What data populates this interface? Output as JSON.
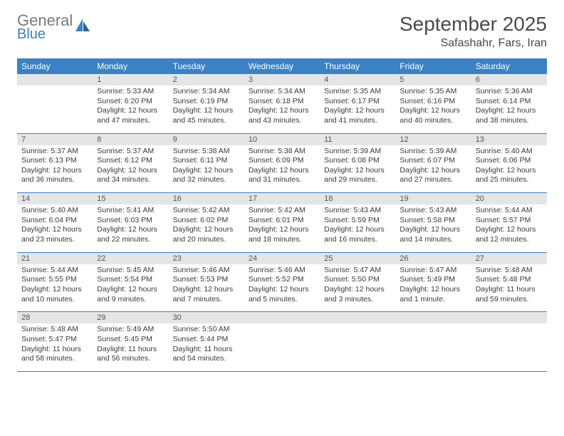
{
  "logo": {
    "line1": "General",
    "line2": "Blue"
  },
  "title": "September 2025",
  "location": "Safashahr, Fars, Iran",
  "colors": {
    "header_bg": "#3a82c4",
    "header_text": "#ffffff",
    "daynum_bg": "#e5e5e5",
    "border": "#3a82c4",
    "text": "#3a3a3a",
    "logo_gray": "#7a7a7a",
    "logo_blue": "#3a82c4"
  },
  "weekdays": [
    "Sunday",
    "Monday",
    "Tuesday",
    "Wednesday",
    "Thursday",
    "Friday",
    "Saturday"
  ],
  "weeks": [
    [
      {
        "day": "",
        "lines": []
      },
      {
        "day": "1",
        "lines": [
          "Sunrise: 5:33 AM",
          "Sunset: 6:20 PM",
          "Daylight: 12 hours and 47 minutes."
        ]
      },
      {
        "day": "2",
        "lines": [
          "Sunrise: 5:34 AM",
          "Sunset: 6:19 PM",
          "Daylight: 12 hours and 45 minutes."
        ]
      },
      {
        "day": "3",
        "lines": [
          "Sunrise: 5:34 AM",
          "Sunset: 6:18 PM",
          "Daylight: 12 hours and 43 minutes."
        ]
      },
      {
        "day": "4",
        "lines": [
          "Sunrise: 5:35 AM",
          "Sunset: 6:17 PM",
          "Daylight: 12 hours and 41 minutes."
        ]
      },
      {
        "day": "5",
        "lines": [
          "Sunrise: 5:35 AM",
          "Sunset: 6:16 PM",
          "Daylight: 12 hours and 40 minutes."
        ]
      },
      {
        "day": "6",
        "lines": [
          "Sunrise: 5:36 AM",
          "Sunset: 6:14 PM",
          "Daylight: 12 hours and 38 minutes."
        ]
      }
    ],
    [
      {
        "day": "7",
        "lines": [
          "Sunrise: 5:37 AM",
          "Sunset: 6:13 PM",
          "Daylight: 12 hours and 36 minutes."
        ]
      },
      {
        "day": "8",
        "lines": [
          "Sunrise: 5:37 AM",
          "Sunset: 6:12 PM",
          "Daylight: 12 hours and 34 minutes."
        ]
      },
      {
        "day": "9",
        "lines": [
          "Sunrise: 5:38 AM",
          "Sunset: 6:11 PM",
          "Daylight: 12 hours and 32 minutes."
        ]
      },
      {
        "day": "10",
        "lines": [
          "Sunrise: 5:38 AM",
          "Sunset: 6:09 PM",
          "Daylight: 12 hours and 31 minutes."
        ]
      },
      {
        "day": "11",
        "lines": [
          "Sunrise: 5:39 AM",
          "Sunset: 6:08 PM",
          "Daylight: 12 hours and 29 minutes."
        ]
      },
      {
        "day": "12",
        "lines": [
          "Sunrise: 5:39 AM",
          "Sunset: 6:07 PM",
          "Daylight: 12 hours and 27 minutes."
        ]
      },
      {
        "day": "13",
        "lines": [
          "Sunrise: 5:40 AM",
          "Sunset: 6:06 PM",
          "Daylight: 12 hours and 25 minutes."
        ]
      }
    ],
    [
      {
        "day": "14",
        "lines": [
          "Sunrise: 5:40 AM",
          "Sunset: 6:04 PM",
          "Daylight: 12 hours and 23 minutes."
        ]
      },
      {
        "day": "15",
        "lines": [
          "Sunrise: 5:41 AM",
          "Sunset: 6:03 PM",
          "Daylight: 12 hours and 22 minutes."
        ]
      },
      {
        "day": "16",
        "lines": [
          "Sunrise: 5:42 AM",
          "Sunset: 6:02 PM",
          "Daylight: 12 hours and 20 minutes."
        ]
      },
      {
        "day": "17",
        "lines": [
          "Sunrise: 5:42 AM",
          "Sunset: 6:01 PM",
          "Daylight: 12 hours and 18 minutes."
        ]
      },
      {
        "day": "18",
        "lines": [
          "Sunrise: 5:43 AM",
          "Sunset: 5:59 PM",
          "Daylight: 12 hours and 16 minutes."
        ]
      },
      {
        "day": "19",
        "lines": [
          "Sunrise: 5:43 AM",
          "Sunset: 5:58 PM",
          "Daylight: 12 hours and 14 minutes."
        ]
      },
      {
        "day": "20",
        "lines": [
          "Sunrise: 5:44 AM",
          "Sunset: 5:57 PM",
          "Daylight: 12 hours and 12 minutes."
        ]
      }
    ],
    [
      {
        "day": "21",
        "lines": [
          "Sunrise: 5:44 AM",
          "Sunset: 5:55 PM",
          "Daylight: 12 hours and 10 minutes."
        ]
      },
      {
        "day": "22",
        "lines": [
          "Sunrise: 5:45 AM",
          "Sunset: 5:54 PM",
          "Daylight: 12 hours and 9 minutes."
        ]
      },
      {
        "day": "23",
        "lines": [
          "Sunrise: 5:46 AM",
          "Sunset: 5:53 PM",
          "Daylight: 12 hours and 7 minutes."
        ]
      },
      {
        "day": "24",
        "lines": [
          "Sunrise: 5:46 AM",
          "Sunset: 5:52 PM",
          "Daylight: 12 hours and 5 minutes."
        ]
      },
      {
        "day": "25",
        "lines": [
          "Sunrise: 5:47 AM",
          "Sunset: 5:50 PM",
          "Daylight: 12 hours and 3 minutes."
        ]
      },
      {
        "day": "26",
        "lines": [
          "Sunrise: 5:47 AM",
          "Sunset: 5:49 PM",
          "Daylight: 12 hours and 1 minute."
        ]
      },
      {
        "day": "27",
        "lines": [
          "Sunrise: 5:48 AM",
          "Sunset: 5:48 PM",
          "Daylight: 11 hours and 59 minutes."
        ]
      }
    ],
    [
      {
        "day": "28",
        "lines": [
          "Sunrise: 5:48 AM",
          "Sunset: 5:47 PM",
          "Daylight: 11 hours and 58 minutes."
        ]
      },
      {
        "day": "29",
        "lines": [
          "Sunrise: 5:49 AM",
          "Sunset: 5:45 PM",
          "Daylight: 11 hours and 56 minutes."
        ]
      },
      {
        "day": "30",
        "lines": [
          "Sunrise: 5:50 AM",
          "Sunset: 5:44 PM",
          "Daylight: 11 hours and 54 minutes."
        ]
      },
      {
        "day": "",
        "lines": []
      },
      {
        "day": "",
        "lines": []
      },
      {
        "day": "",
        "lines": []
      },
      {
        "day": "",
        "lines": []
      }
    ]
  ]
}
